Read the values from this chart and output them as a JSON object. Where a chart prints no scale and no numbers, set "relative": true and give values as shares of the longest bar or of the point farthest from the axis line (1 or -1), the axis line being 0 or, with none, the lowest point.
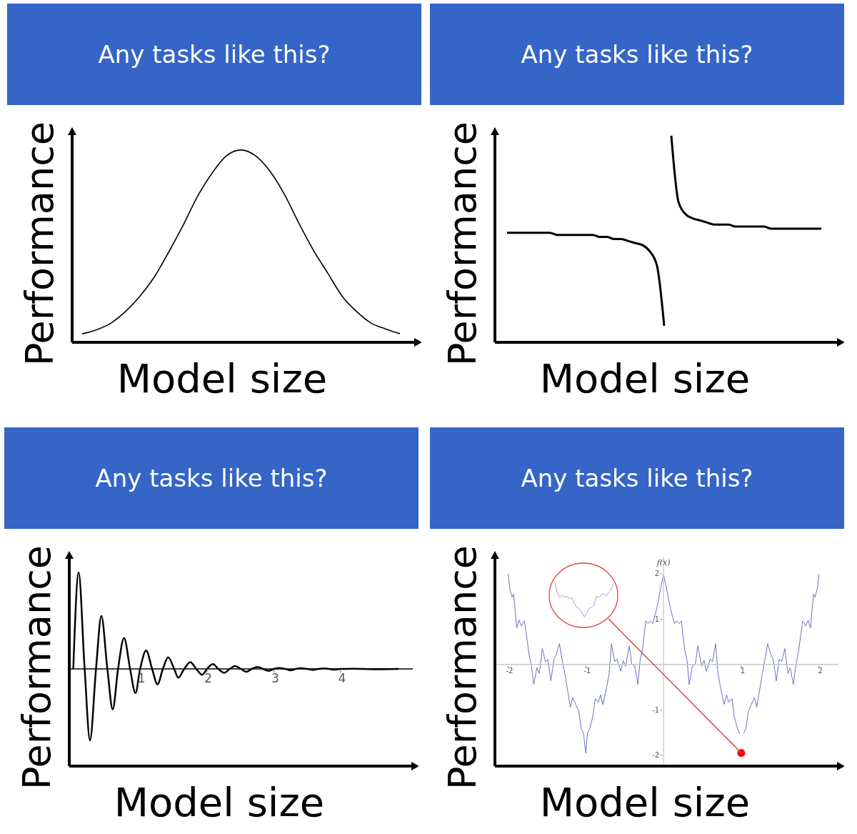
{
  "chart_data": [
    {
      "type": "line",
      "title": "Any tasks like this?",
      "xlabel": "Model size",
      "ylabel": "Performance",
      "relative": true,
      "tick_labels": false,
      "categories": [
        null,
        null,
        null,
        null,
        null,
        null,
        null,
        null,
        null,
        null,
        null,
        null,
        null,
        null,
        null,
        null,
        null,
        null,
        null,
        null,
        null,
        null,
        null
      ],
      "values": [
        0.044,
        0.065,
        0.1,
        0.16,
        0.24,
        0.34,
        0.47,
        0.61,
        0.76,
        0.88,
        0.97,
        1.0,
        0.97,
        0.89,
        0.77,
        0.62,
        0.48,
        0.36,
        0.24,
        0.16,
        0.1,
        0.07,
        0.045
      ],
      "color": "#000000"
    },
    {
      "type": "line",
      "title": "Any tasks like this?",
      "xlabel": "Model size",
      "ylabel": "Performance",
      "relative": true,
      "tick_labels": false,
      "categories": [
        null,
        null,
        null,
        null,
        null,
        null,
        null,
        null,
        null,
        null,
        null,
        null,
        null,
        null,
        null,
        null,
        null,
        null,
        null,
        null,
        null,
        null,
        null,
        null,
        null,
        null,
        null,
        null,
        null,
        null,
        null,
        null,
        null,
        null,
        null,
        null,
        null,
        null,
        null,
        null,
        null,
        null,
        null,
        null,
        null
      ],
      "series": [
        {
          "color": "#000000",
          "values": [
            0.53,
            0.53,
            0.53,
            0.53,
            0.53,
            0.53,
            0.53,
            0.52,
            0.52,
            0.52,
            0.52,
            0.52,
            0.52,
            0.51,
            0.51,
            0.5,
            0.5,
            0.49,
            0.48,
            0.47,
            0.44,
            0.37,
            0.08,
            null,
            null,
            null,
            null,
            null,
            null,
            null,
            null,
            null,
            null,
            null,
            null,
            null,
            null,
            null,
            null,
            null,
            null,
            null,
            null,
            null,
            null
          ]
        },
        {
          "color": "#000000",
          "values": [
            null,
            null,
            null,
            null,
            null,
            null,
            null,
            null,
            null,
            null,
            null,
            null,
            null,
            null,
            null,
            null,
            null,
            null,
            null,
            null,
            null,
            null,
            null,
            1.0,
            0.68,
            0.62,
            0.6,
            0.59,
            0.58,
            0.57,
            0.57,
            0.57,
            0.56,
            0.56,
            0.56,
            0.56,
            0.56,
            0.55,
            0.55,
            0.55,
            0.55,
            0.55,
            0.55,
            0.55,
            0.55
          ]
        }
      ]
    },
    {
      "type": "line",
      "title": "Any tasks like this?",
      "xlabel": "Model size",
      "ylabel": "Performance",
      "relative": true,
      "tick_labels": "x",
      "xlim": [
        -0.06,
        5.08
      ],
      "xticks": [
        1,
        2,
        3,
        4
      ],
      "x": [
        0,
        0.08,
        0.17,
        0.25,
        0.34,
        0.42,
        0.51,
        0.59,
        0.67,
        0.76,
        0.85,
        0.93,
        1.0,
        1.09,
        1.18,
        1.26,
        1.34,
        1.42,
        1.51,
        1.57,
        1.66,
        1.75,
        1.84,
        1.93,
        2.0,
        2.09,
        2.17,
        2.26,
        2.34,
        2.42,
        2.51,
        2.59,
        2.67,
        2.76,
        2.84,
        2.92,
        3.0,
        3.09,
        3.17,
        3.25,
        3.33,
        3.41,
        3.5,
        3.59,
        3.67,
        3.75,
        3.83,
        3.91,
        4.0,
        4.2,
        4.5,
        4.87
      ],
      "values": [
        0,
        1,
        0,
        -0.74,
        0,
        0.55,
        0,
        -0.42,
        0,
        0.32,
        0,
        -0.25,
        0,
        0.19,
        0,
        -0.16,
        0,
        0.12,
        0,
        -0.09,
        0,
        0.07,
        0,
        -0.06,
        0,
        0.05,
        0,
        -0.04,
        0,
        0.03,
        0,
        -0.03,
        0,
        0.02,
        0,
        -0.02,
        0,
        0.01,
        0,
        -0.015,
        0,
        0.007,
        0,
        -0.01,
        0,
        0.005,
        0,
        -0.007,
        0,
        0.003,
        -0.003,
        0
      ],
      "color": "#000000"
    },
    {
      "type": "line",
      "title": "Any tasks like this?",
      "xlabel": "Model size",
      "ylabel": "Performance",
      "xlim": [
        -2.17,
        2.25
      ],
      "ylim": [
        -2.24,
        2.36
      ],
      "xticks": [
        -2,
        -1,
        1,
        2
      ],
      "yticks": [
        -2,
        -1,
        1,
        2
      ],
      "annotations": [
        "f(x)"
      ],
      "series": [
        {
          "color": "#6b70c8",
          "x": [
            -2.0,
            -1.98,
            -1.95,
            -1.93,
            -1.91,
            -1.89,
            -1.86,
            -1.83,
            -1.79,
            -1.76,
            -1.73,
            -1.7,
            -1.67,
            -1.63,
            -1.6,
            -1.56,
            -1.52,
            -1.49,
            -1.45,
            -1.41,
            -1.38,
            -1.34,
            -1.3,
            -1.27,
            -1.23,
            -1.2,
            -1.17,
            -1.13,
            -1.09,
            -1.06,
            -1.03,
            -1.0,
            -0.98,
            -0.95,
            -0.91,
            -0.88,
            -0.84,
            -0.81,
            -0.78,
            -0.74,
            -0.7,
            -0.67,
            -0.63,
            -0.6,
            -0.55,
            -0.52,
            -0.49,
            -0.44,
            -0.41,
            -0.37,
            -0.33,
            -0.3,
            -0.27,
            -0.23,
            -0.2,
            -0.17,
            -0.14,
            -0.09,
            -0.06,
            -0.03,
            0,
            0.03,
            0.06,
            0.09,
            0.14,
            0.17,
            0.2,
            0.23,
            0.27,
            0.3,
            0.33,
            0.37,
            0.41,
            0.44,
            0.49,
            0.52,
            0.55,
            0.6,
            0.63,
            0.67,
            0.7,
            0.74,
            0.78,
            0.81,
            0.84,
            0.88,
            0.91,
            0.95,
            0.98,
            1.0,
            1.03,
            1.06,
            1.09,
            1.13,
            1.17,
            1.2,
            1.23,
            1.27,
            1.3,
            1.34,
            1.38,
            1.41,
            1.45,
            1.49,
            1.52,
            1.56,
            1.6,
            1.63,
            1.67,
            1.7,
            1.73,
            1.76,
            1.79,
            1.83,
            1.86,
            1.89,
            1.91,
            1.93,
            1.95,
            1.98,
            2.0
          ],
          "values": [
            2.0,
            1.69,
            1.48,
            1.55,
            1.2,
            0.8,
            0.98,
            0.85,
            0.96,
            0.59,
            0.22,
            -0.04,
            -0.44,
            -0.07,
            -0.2,
            0.35,
            0.06,
            0.12,
            -0.36,
            0.12,
            0.22,
            0.46,
            0.06,
            -0.2,
            -0.62,
            -0.94,
            -0.73,
            -0.88,
            -1.04,
            -1.41,
            -1.52,
            -1.96,
            -1.52,
            -1.41,
            -1.15,
            -0.75,
            -0.83,
            -0.67,
            -0.88,
            -0.57,
            -0.2,
            0.46,
            0.06,
            0.12,
            -0.15,
            0.09,
            -0.04,
            0.41,
            0.01,
            -0.04,
            -0.44,
            0.12,
            0.33,
            0.96,
            0.9,
            0.96,
            0.9,
            1.22,
            1.48,
            1.75,
            1.98,
            1.75,
            1.48,
            1.22,
            0.9,
            0.96,
            0.9,
            0.96,
            0.33,
            0.12,
            -0.44,
            -0.04,
            0.01,
            0.41,
            -0.04,
            0.09,
            -0.15,
            0.12,
            0.06,
            0.46,
            -0.2,
            -0.57,
            -0.88,
            -0.67,
            -0.83,
            -0.75,
            -1.15,
            -1.41,
            -1.52,
            null,
            -1.52,
            -1.41,
            -1.04,
            -0.88,
            -0.73,
            -0.94,
            -0.62,
            -0.2,
            0.06,
            0.46,
            0.22,
            0.12,
            -0.36,
            0.12,
            0.06,
            0.35,
            -0.2,
            -0.07,
            -0.44,
            -0.04,
            0.22,
            0.59,
            0.96,
            0.85,
            0.98,
            0.8,
            1.2,
            1.55,
            1.48,
            1.69,
            2.0
          ]
        },
        {
          "type": "scatter",
          "color": "#ff0000",
          "marker": "circle",
          "x": [
            1.0
          ],
          "values": [
            -1.95
          ]
        }
      ]
    },
    {
      "type": "line",
      "relative": true,
      "tick_labels": false,
      "categories": [
        null,
        null,
        null,
        null,
        null,
        null,
        null,
        null,
        null,
        null,
        null,
        null,
        null,
        null,
        null,
        null,
        null,
        null,
        null,
        null,
        null,
        null,
        null,
        null,
        null
      ],
      "values": [
        1.0,
        0.72,
        0.57,
        0.65,
        0.57,
        0.61,
        0.54,
        0.57,
        0.39,
        0.28,
        0.24,
        0.13,
        0,
        0.09,
        0.24,
        0.28,
        0.35,
        0.61,
        0.57,
        0.65,
        0.69,
        0.61,
        0.72,
        0.8,
        1.0
      ],
      "color": "#9aa0e0"
    }
  ]
}
